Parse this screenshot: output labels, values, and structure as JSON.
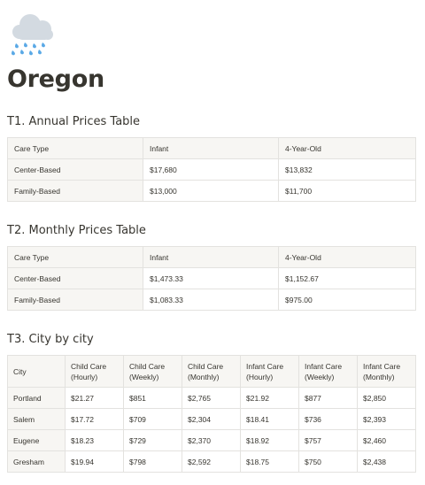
{
  "page": {
    "icon": "rain-cloud-icon",
    "title": "Oregon"
  },
  "colors": {
    "text": "#37352f",
    "header_bg": "#f7f6f3",
    "border": "#e3e2df",
    "cloud": "#d3dae1",
    "rain": "#5aa9e6"
  },
  "t1": {
    "heading": "T1. Annual Prices Table",
    "headers": [
      "Care Type",
      "Infant",
      "4-Year-Old"
    ],
    "rows": [
      [
        "Center-Based",
        "$17,680",
        "$13,832"
      ],
      [
        "Family-Based",
        "$13,000",
        "$11,700"
      ]
    ]
  },
  "t2": {
    "heading": "T2. Monthly Prices Table",
    "headers": [
      "Care Type",
      "Infant",
      "4-Year-Old"
    ],
    "rows": [
      [
        "Center-Based",
        "$1,473.33",
        "$1,152.67"
      ],
      [
        "Family-Based",
        "$1,083.33",
        "$975.00"
      ]
    ]
  },
  "t3": {
    "heading": "T3. City by city",
    "headers": [
      "City",
      "Child Care (Hourly)",
      "Child Care (Weekly)",
      "Child Care (Monthly)",
      "Infant Care (Hourly)",
      "Infant Care (Weekly)",
      "Infant Care (Monthly)"
    ],
    "rows": [
      [
        "Portland",
        "$21.27",
        "$851",
        "$2,765",
        "$21.92",
        "$877",
        "$2,850"
      ],
      [
        "Salem",
        "$17.72",
        "$709",
        "$2,304",
        "$18.41",
        "$736",
        "$2,393"
      ],
      [
        "Eugene",
        "$18.23",
        "$729",
        "$2,370",
        "$18.92",
        "$757",
        "$2,460"
      ],
      [
        "Gresham",
        "$19.94",
        "$798",
        "$2,592",
        "$18.75",
        "$750",
        "$2,438"
      ]
    ]
  }
}
